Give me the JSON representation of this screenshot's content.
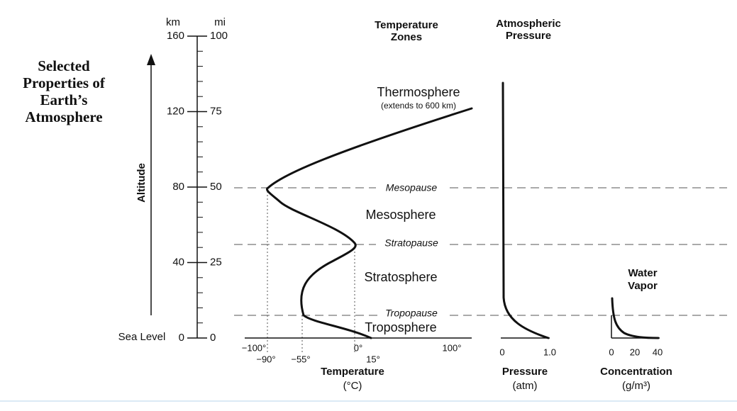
{
  "title": [
    "Selected",
    "Properties of",
    "Earth’s",
    "Atmosphere"
  ],
  "altitude": {
    "label": "Altitude",
    "km_unit": "km",
    "mi_unit": "mi",
    "km_labels": [
      "160",
      "120",
      "80",
      "40",
      "0"
    ],
    "mi_labels": [
      "100",
      "75",
      "50",
      "25",
      "0"
    ],
    "sea_level": "Sea Level"
  },
  "temperature_zones": {
    "header": [
      "Temperature",
      "Zones"
    ],
    "zones": [
      "Thermosphere",
      "Mesosphere",
      "Stratosphere",
      "Troposphere"
    ],
    "thermosphere_note": "(extends to 600 km)",
    "boundaries": [
      "Mesopause",
      "Stratopause",
      "Tropopause"
    ]
  },
  "temperature_axis": {
    "ticks_top": [
      "−100°",
      "0°",
      "100°"
    ],
    "ticks_bottom": [
      "−90°",
      "−55°",
      "15°"
    ],
    "label": "Temperature",
    "unit": "(°C)"
  },
  "pressure": {
    "header": [
      "Atmospheric",
      "Pressure"
    ],
    "ticks": [
      "0",
      "1.0"
    ],
    "label": "Pressure",
    "unit": "(atm)"
  },
  "water_vapor": {
    "header": [
      "Water",
      "Vapor"
    ],
    "ticks": [
      "0",
      "20",
      "40"
    ],
    "label": "Concentration",
    "unit": "(g/m³)"
  }
}
